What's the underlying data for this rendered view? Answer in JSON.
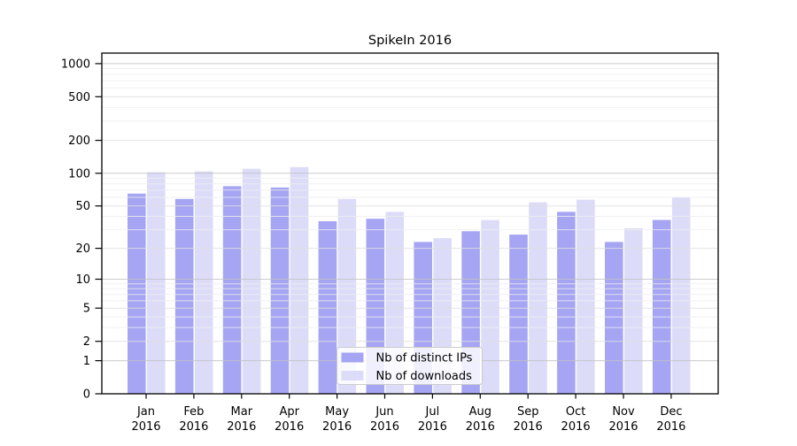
{
  "title": "SpikeIn 2016",
  "legend": {
    "items": [
      {
        "label": "Nb of distinct IPs"
      },
      {
        "label": "Nb of downloads"
      }
    ]
  },
  "colors": {
    "distinct_ips_bar": "#a5a5f3",
    "downloads_bar": "#dcdcf9",
    "axis": "#000000",
    "grid_major": "#c2c2c2",
    "grid_submajor": "#e0e0e0",
    "grid_minor": "#eeeeee",
    "legend_border": "#cccccc",
    "legend_bg": "#ffffff"
  },
  "chart_data": {
    "type": "bar",
    "title": "SpikeIn 2016",
    "xlabel": "",
    "ylabel": "",
    "yscale": "symlog (position proportional to log(1+value))",
    "ylim": [
      0,
      1250
    ],
    "grid": true,
    "legend_position": "inside, lower center of plot",
    "categories": [
      "Jan 2016",
      "Feb 2016",
      "Mar 2016",
      "Apr 2016",
      "May 2016",
      "Jun 2016",
      "Jul 2016",
      "Aug 2016",
      "Sep 2016",
      "Oct 2016",
      "Nov 2016",
      "Dec 2016"
    ],
    "yticks": [
      0,
      1,
      2,
      5,
      10,
      20,
      50,
      100,
      200,
      500,
      1000
    ],
    "series": [
      {
        "name": "Nb of distinct IPs",
        "color": "#a5a5f3",
        "values": [
          65,
          58,
          76,
          74,
          36,
          38,
          23,
          29,
          27,
          44,
          23,
          37
        ]
      },
      {
        "name": "Nb of downloads",
        "color": "#dcdcf9",
        "values": [
          102,
          104,
          110,
          114,
          58,
          44,
          25,
          37,
          54,
          57,
          31,
          60
        ]
      }
    ]
  }
}
